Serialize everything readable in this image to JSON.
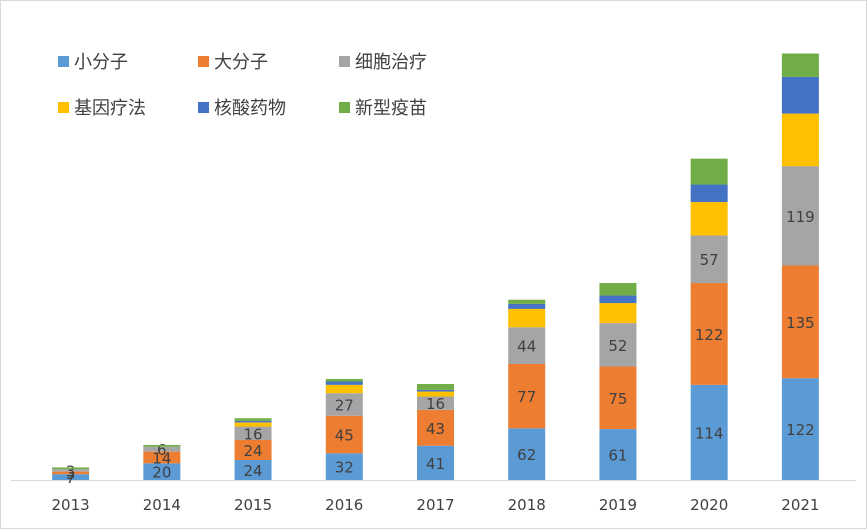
{
  "chart_data": {
    "type": "bar",
    "stacked": true,
    "categories": [
      "2013",
      "2014",
      "2015",
      "2016",
      "2017",
      "2018",
      "2019",
      "2020",
      "2021"
    ],
    "series": [
      {
        "name": "小分子",
        "color": "#5b9bd5",
        "values": [
          7,
          20,
          24,
          32,
          41,
          62,
          61,
          114,
          122
        ],
        "labels": [
          "7",
          "20",
          "24",
          "32",
          "41",
          "62",
          "61",
          "114",
          "122"
        ]
      },
      {
        "name": "大分子",
        "color": "#ed7d31",
        "values": [
          3,
          14,
          24,
          45,
          43,
          77,
          75,
          122,
          135
        ],
        "labels": [
          "3",
          "14",
          "24",
          "45",
          "43",
          "77",
          "75",
          "122",
          "135"
        ]
      },
      {
        "name": "细胞治疗",
        "color": "#a5a5a5",
        "values": [
          3,
          6,
          16,
          27,
          16,
          44,
          52,
          57,
          119
        ],
        "labels": [
          "3",
          "6",
          "16",
          "27",
          "16",
          "44",
          "52",
          "57",
          "119"
        ]
      },
      {
        "name": "基因疗法",
        "color": "#ffc000",
        "values": [
          0,
          0,
          5,
          10,
          6,
          22,
          24,
          40,
          63
        ],
        "labels": [
          "",
          "",
          "",
          "",
          "",
          "",
          "",
          "",
          ""
        ]
      },
      {
        "name": "核酸药物",
        "color": "#4472c4",
        "values": [
          0,
          0,
          2,
          4,
          2,
          6,
          9,
          21,
          44
        ],
        "labels": [
          "",
          "",
          "",
          "",
          "",
          "",
          "",
          "",
          ""
        ]
      },
      {
        "name": "新型疫苗",
        "color": "#70ad47",
        "values": [
          2,
          2,
          3,
          3,
          7,
          5,
          15,
          31,
          28
        ],
        "labels": [
          "",
          "",
          "",
          "",
          "",
          "",
          "",
          "",
          ""
        ]
      }
    ],
    "ylim": [
      0,
      520
    ],
    "grid": false,
    "legend_position": "top-left"
  }
}
